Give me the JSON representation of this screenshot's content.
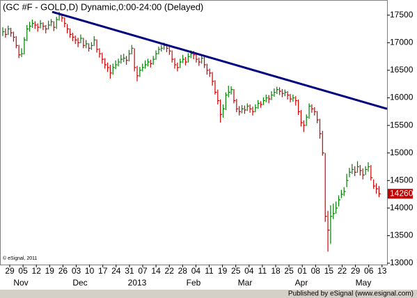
{
  "chart_data": {
    "type": "ohlc",
    "title": "(GC #F - GOLD,D) Dynamic,0:00-24:00 (Delayed)",
    "copyright": "© eSignal, 2011",
    "footer": "Published by eSignal (www.esignal.com)",
    "high": [
      17280,
      17260,
      17310,
      17270,
      17200,
      17120,
      16960,
      16900,
      17100,
      17320,
      17380,
      17420,
      17390,
      17350,
      17410,
      17370,
      17320,
      17400,
      17430,
      17390,
      17470,
      17560,
      17520,
      17460,
      17340,
      17260,
      17180,
      17130,
      17090,
      17150,
      17090,
      17050,
      16990,
      17010,
      17120,
      17060,
      16900,
      16820,
      16720,
      16640,
      16600,
      16620,
      16680,
      16710,
      16780,
      16800,
      16760,
      16870,
      16960,
      16900,
      16580,
      16560,
      16620,
      16680,
      16710,
      16690,
      16760,
      16860,
      16930,
      16960,
      17000,
      16980,
      16930,
      16860,
      16720,
      16640,
      16710,
      16780,
      16740,
      16810,
      16860,
      16850,
      16800,
      16730,
      16780,
      16740,
      16620,
      16530,
      16470,
      16320,
      16150,
      15970,
      15880,
      16100,
      16220,
      16210,
      16160,
      15980,
      15850,
      15870,
      15860,
      15900,
      15880,
      15840,
      15880,
      15960,
      15940,
      16010,
      16060,
      16050,
      16120,
      16170,
      16200,
      16190,
      16160,
      16150,
      16120,
      16070,
      16060,
      16030,
      15970,
      15780,
      15590,
      15700,
      15900,
      15880,
      15830,
      15760,
      15620,
      15400,
      15000,
      13950,
      14050,
      14080,
      14120,
      14230,
      14330,
      14380,
      14620,
      14730,
      14800,
      14760,
      14850,
      14780,
      14720,
      14760,
      14830,
      14780,
      14520,
      14450,
      14400
    ],
    "low": [
      17120,
      17090,
      17140,
      17110,
      17020,
      16900,
      16720,
      16740,
      16790,
      17030,
      17200,
      17270,
      17250,
      17200,
      17260,
      17230,
      17170,
      17240,
      17300,
      17210,
      17250,
      17400,
      17380,
      17280,
      17170,
      17090,
      17030,
      16980,
      16920,
      16990,
      16900,
      16900,
      16840,
      16870,
      16940,
      16820,
      16730,
      16620,
      16530,
      16470,
      16350,
      16420,
      16520,
      16570,
      16620,
      16650,
      16600,
      16660,
      16790,
      16480,
      16300,
      16380,
      16480,
      16530,
      16570,
      16550,
      16600,
      16690,
      16790,
      16840,
      16870,
      16830,
      16780,
      16640,
      16530,
      16480,
      16540,
      16630,
      16590,
      16640,
      16720,
      16700,
      16640,
      16580,
      16620,
      16540,
      16420,
      16380,
      16220,
      16060,
      15880,
      15550,
      15640,
      15780,
      16010,
      16060,
      15900,
      15740,
      15680,
      15720,
      15710,
      15760,
      15730,
      15680,
      15740,
      15800,
      15820,
      15870,
      15920,
      15900,
      15960,
      16020,
      16070,
      16050,
      16010,
      16030,
      15970,
      15920,
      15930,
      15860,
      15690,
      15480,
      15380,
      15490,
      15620,
      15730,
      15680,
      15540,
      15260,
      14950,
      13750,
      13210,
      13350,
      13800,
      13900,
      14030,
      14180,
      14220,
      14380,
      14560,
      14620,
      14580,
      14640,
      14590,
      14520,
      14600,
      14660,
      14500,
      14350,
      14260,
      14200
    ],
    "close": [
      17200,
      17150,
      17250,
      17180,
      17100,
      16950,
      16780,
      16800,
      17050,
      17250,
      17300,
      17350,
      17320,
      17280,
      17350,
      17300,
      17250,
      17320,
      17380,
      17280,
      17420,
      17500,
      17450,
      17350,
      17250,
      17150,
      17100,
      17050,
      17000,
      17080,
      16950,
      16980,
      16900,
      16950,
      17050,
      16880,
      16800,
      16700,
      16600,
      16550,
      16450,
      16550,
      16600,
      16650,
      16700,
      16720,
      16680,
      16800,
      16900,
      16550,
      16400,
      16500,
      16550,
      16600,
      16650,
      16620,
      16700,
      16800,
      16880,
      16900,
      16950,
      16900,
      16850,
      16700,
      16600,
      16550,
      16650,
      16700,
      16650,
      16750,
      16800,
      16780,
      16700,
      16650,
      16720,
      16600,
      16500,
      16450,
      16300,
      16100,
      15950,
      15700,
      15800,
      16050,
      16100,
      16150,
      15950,
      15800,
      15750,
      15800,
      15780,
      15850,
      15800,
      15750,
      15820,
      15900,
      15880,
      15950,
      16000,
      15980,
      16050,
      16100,
      16150,
      16120,
      16080,
      16100,
      16050,
      15980,
      16000,
      15950,
      15750,
      15550,
      15500,
      15650,
      15850,
      15800,
      15750,
      15600,
      15350,
      15000,
      13850,
      13600,
      13850,
      13900,
      14000,
      14150,
      14250,
      14300,
      14500,
      14650,
      14700,
      14650,
      14750,
      14680,
      14600,
      14700,
      14750,
      14550,
      14400,
      14350,
      14260
    ],
    "up_color": "#008000",
    "down_color": "#cc0000",
    "ylim": [
      12975,
      17775
    ],
    "yticks": [
      13000,
      13500,
      14000,
      14500,
      15000,
      15500,
      16000,
      16500,
      17000,
      17500
    ],
    "x_tick_labels": [
      "29",
      "05",
      "12",
      "19",
      "26",
      "03",
      "10",
      "17",
      "24",
      "31",
      "07",
      "14",
      "22",
      "28",
      "04",
      "11",
      "19",
      "25",
      "04",
      "11",
      "18",
      "25",
      "01",
      "08",
      "15",
      "22",
      "29",
      "06",
      "13"
    ],
    "x_month_labels": [
      "Nov",
      "Dec",
      "2013",
      "Feb",
      "Mar",
      "Apr",
      "May"
    ],
    "trendline": {
      "values": [
        17560,
        15800
      ],
      "color": "#000080"
    },
    "last_price": {
      "value": 14260,
      "color": "#c00000"
    }
  }
}
